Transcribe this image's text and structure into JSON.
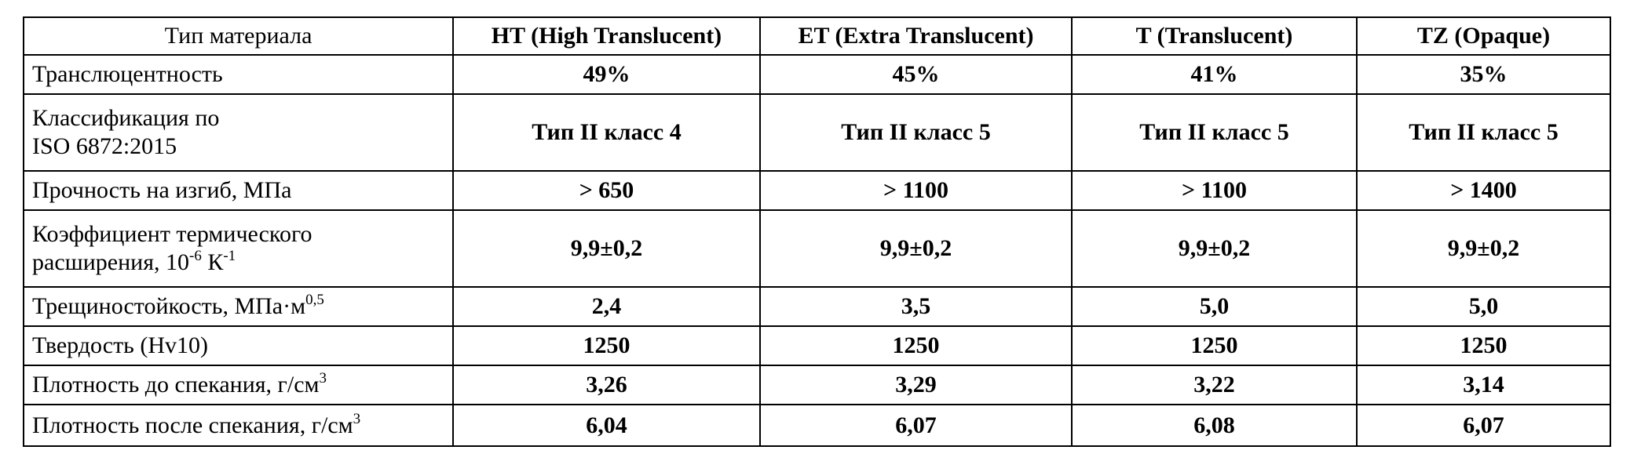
{
  "table": {
    "header": [
      "Тип материала",
      "HT (High Translucent)",
      "ET (Extra Translucent)",
      "T (Translucent)",
      "TZ (Opaque)"
    ],
    "rows": [
      {
        "label": [
          [
            {
              "text": "Транслюцентность"
            }
          ]
        ],
        "values": [
          "49%",
          "45%",
          "41%",
          "35%"
        ]
      },
      {
        "label": [
          [
            {
              "text": "Классификация по"
            }
          ],
          [
            {
              "text": "ISO 6872:2015"
            }
          ]
        ],
        "values": [
          "Тип II класс 4",
          "Тип II класс 5",
          "Тип II класс 5",
          "Тип II класс 5"
        ]
      },
      {
        "label": [
          [
            {
              "text": "Прочность на изгиб, МПа"
            }
          ]
        ],
        "values": [
          "> 650",
          "> 1100",
          "> 1100",
          "> 1400"
        ]
      },
      {
        "label": [
          [
            {
              "text": "Коэффициент термического"
            }
          ],
          [
            {
              "text": "расширения, 10"
            },
            {
              "sup": "-6"
            },
            {
              "text": " К"
            },
            {
              "sup": "-1"
            }
          ]
        ],
        "values": [
          "9,9±0,2",
          "9,9±0,2",
          "9,9±0,2",
          "9,9±0,2"
        ]
      },
      {
        "label": [
          [
            {
              "text": "Трещиностойкость, МПа·м"
            },
            {
              "sup": "0,5"
            }
          ]
        ],
        "values": [
          "2,4",
          "3,5",
          "5,0",
          "5,0"
        ]
      },
      {
        "label": [
          [
            {
              "text": "Твердость (Hv10)"
            }
          ]
        ],
        "values": [
          "1250",
          "1250",
          "1250",
          "1250"
        ]
      },
      {
        "label": [
          [
            {
              "text": "Плотность до спекания, г/см"
            },
            {
              "sup": "3"
            }
          ]
        ],
        "values": [
          "3,26",
          "3,29",
          "3,22",
          "3,14"
        ]
      },
      {
        "label": [
          [
            {
              "text": "Плотность после спекания, г/см"
            },
            {
              "sup": "3"
            }
          ]
        ],
        "values": [
          "6,04",
          "6,07",
          "6,08",
          "6,07"
        ]
      }
    ]
  }
}
